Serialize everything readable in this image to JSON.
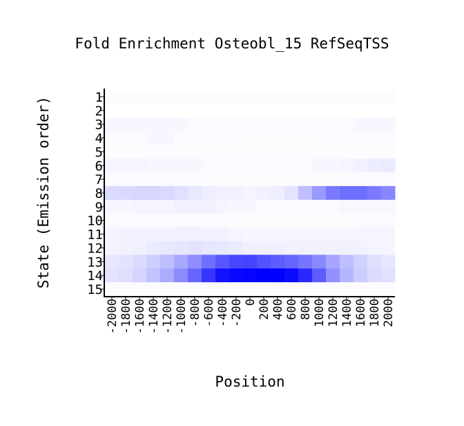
{
  "chart_data": {
    "type": "heatmap",
    "title": "Fold Enrichment Osteobl_15 RefSeqTSS",
    "xlabel": "Position",
    "ylabel": "State (Emission order)",
    "x": [
      "-2000",
      "-1800",
      "-1600",
      "-1400",
      "-1200",
      "-1000",
      "-800",
      "-600",
      "-400",
      "-200",
      "0",
      "200",
      "400",
      "600",
      "800",
      "1000",
      "1200",
      "1400",
      "1600",
      "1800",
      "2000"
    ],
    "y": [
      "1",
      "2",
      "3",
      "4",
      "5",
      "6",
      "7",
      "8",
      "9",
      "10",
      "11",
      "12",
      "13",
      "14",
      "15"
    ],
    "color_low": "#ffffff",
    "color_high": "#0000ff",
    "values": [
      [
        0.01,
        0.01,
        0.01,
        0.01,
        0.01,
        0.01,
        0.01,
        0.01,
        0.01,
        0.01,
        0.01,
        0.01,
        0.01,
        0.01,
        0.01,
        0.01,
        0.01,
        0.01,
        0.01,
        0.01,
        0.01
      ],
      [
        0.0,
        0.0,
        0.0,
        0.0,
        0.0,
        0.0,
        0.0,
        0.0,
        0.0,
        0.0,
        0.0,
        0.0,
        0.0,
        0.0,
        0.0,
        0.0,
        0.0,
        0.0,
        0.0,
        0.0,
        0.0
      ],
      [
        0.03,
        0.03,
        0.03,
        0.03,
        0.03,
        0.03,
        0.02,
        0.02,
        0.02,
        0.02,
        0.02,
        0.02,
        0.02,
        0.02,
        0.02,
        0.02,
        0.02,
        0.02,
        0.03,
        0.03,
        0.03
      ],
      [
        0.02,
        0.02,
        0.02,
        0.03,
        0.03,
        0.02,
        0.02,
        0.02,
        0.02,
        0.01,
        0.01,
        0.01,
        0.01,
        0.01,
        0.01,
        0.01,
        0.02,
        0.02,
        0.02,
        0.02,
        0.02
      ],
      [
        0.01,
        0.01,
        0.01,
        0.01,
        0.01,
        0.01,
        0.01,
        0.01,
        0.01,
        0.01,
        0.01,
        0.01,
        0.01,
        0.01,
        0.01,
        0.01,
        0.01,
        0.01,
        0.01,
        0.01,
        0.01
      ],
      [
        0.04,
        0.04,
        0.04,
        0.03,
        0.03,
        0.03,
        0.03,
        0.02,
        0.02,
        0.02,
        0.02,
        0.02,
        0.02,
        0.02,
        0.02,
        0.03,
        0.03,
        0.04,
        0.05,
        0.07,
        0.08
      ],
      [
        0.02,
        0.02,
        0.02,
        0.02,
        0.02,
        0.02,
        0.02,
        0.01,
        0.01,
        0.01,
        0.01,
        0.01,
        0.01,
        0.01,
        0.01,
        0.01,
        0.01,
        0.02,
        0.02,
        0.02,
        0.02
      ],
      [
        0.14,
        0.15,
        0.16,
        0.16,
        0.15,
        0.12,
        0.09,
        0.07,
        0.06,
        0.05,
        0.04,
        0.05,
        0.07,
        0.11,
        0.25,
        0.4,
        0.52,
        0.57,
        0.57,
        0.52,
        0.47
      ],
      [
        0.03,
        0.03,
        0.04,
        0.04,
        0.04,
        0.05,
        0.05,
        0.05,
        0.04,
        0.03,
        0.03,
        0.02,
        0.02,
        0.02,
        0.02,
        0.02,
        0.02,
        0.03,
        0.03,
        0.03,
        0.03
      ],
      [
        0.02,
        0.02,
        0.02,
        0.02,
        0.02,
        0.02,
        0.02,
        0.02,
        0.02,
        0.01,
        0.01,
        0.01,
        0.01,
        0.01,
        0.01,
        0.01,
        0.01,
        0.01,
        0.02,
        0.02,
        0.02
      ],
      [
        0.04,
        0.05,
        0.05,
        0.05,
        0.05,
        0.06,
        0.06,
        0.05,
        0.05,
        0.04,
        0.03,
        0.03,
        0.03,
        0.03,
        0.03,
        0.03,
        0.04,
        0.04,
        0.04,
        0.04,
        0.04
      ],
      [
        0.04,
        0.05,
        0.06,
        0.08,
        0.09,
        0.1,
        0.11,
        0.1,
        0.09,
        0.08,
        0.06,
        0.06,
        0.06,
        0.05,
        0.05,
        0.05,
        0.05,
        0.05,
        0.05,
        0.04,
        0.04
      ],
      [
        0.1,
        0.11,
        0.14,
        0.19,
        0.26,
        0.34,
        0.44,
        0.56,
        0.66,
        0.72,
        0.73,
        0.68,
        0.64,
        0.6,
        0.54,
        0.46,
        0.35,
        0.25,
        0.18,
        0.13,
        0.1
      ],
      [
        0.11,
        0.13,
        0.17,
        0.24,
        0.33,
        0.45,
        0.6,
        0.79,
        0.93,
        0.97,
        0.98,
        1.0,
        1.0,
        0.96,
        0.84,
        0.64,
        0.43,
        0.29,
        0.2,
        0.14,
        0.12
      ],
      [
        0.01,
        0.01,
        0.01,
        0.01,
        0.01,
        0.01,
        0.01,
        0.01,
        0.01,
        0.01,
        0.01,
        0.01,
        0.01,
        0.01,
        0.01,
        0.01,
        0.01,
        0.01,
        0.01,
        0.01,
        0.01
      ]
    ]
  }
}
